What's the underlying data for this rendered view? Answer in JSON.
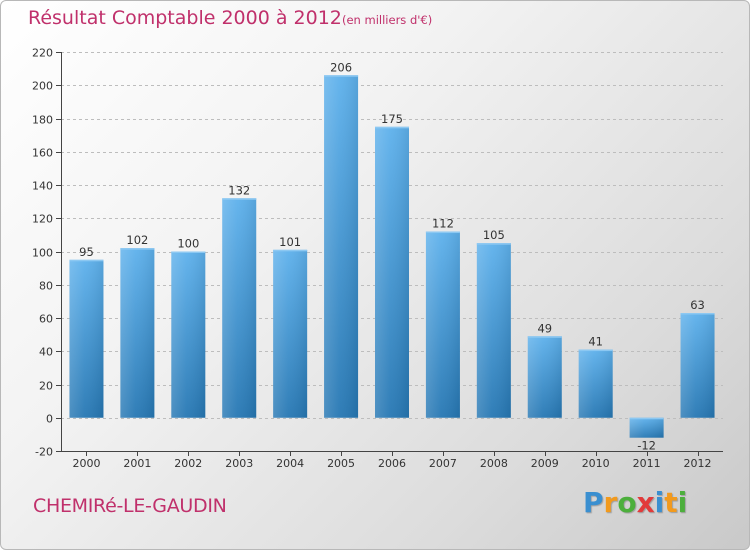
{
  "header": {
    "title": "Résultat Comptable 2000 à 2012",
    "subtitle": "(en milliers d'€)"
  },
  "footer": {
    "commune": "CHEMIRé-LE-GAUDIN",
    "logo_letters": [
      "P",
      "r",
      "o",
      "x",
      "i",
      "t",
      "i"
    ],
    "logo_colors": [
      "#3a8fd0",
      "#f29a1d",
      "#4caf3c",
      "#e23a3a",
      "#3a8fd0",
      "#f29a1d",
      "#4caf3c"
    ]
  },
  "colors": {
    "title": "#c0306b",
    "bar_top": "#5eb1ec",
    "bar_bottom": "#2677b3",
    "axis": "#444444"
  },
  "chart_data": {
    "type": "bar",
    "title": "Résultat Comptable 2000 à 2012",
    "ylabel": "en milliers d'€",
    "xlabel": "",
    "categories": [
      "2000",
      "2001",
      "2002",
      "2003",
      "2004",
      "2005",
      "2006",
      "2007",
      "2008",
      "2009",
      "2010",
      "2011",
      "2012"
    ],
    "values": [
      95,
      102,
      100,
      132,
      101,
      206,
      175,
      112,
      105,
      49,
      41,
      -12,
      63
    ],
    "value_labels": [
      "95",
      "102",
      "100",
      "132",
      "101",
      "206",
      "175",
      "112",
      "105",
      "49",
      "41",
      "-12",
      "63"
    ],
    "ylim": [
      -20,
      220
    ],
    "yticks": [
      -20,
      0,
      20,
      40,
      60,
      80,
      100,
      120,
      140,
      160,
      180,
      200,
      220
    ],
    "grid": true
  }
}
